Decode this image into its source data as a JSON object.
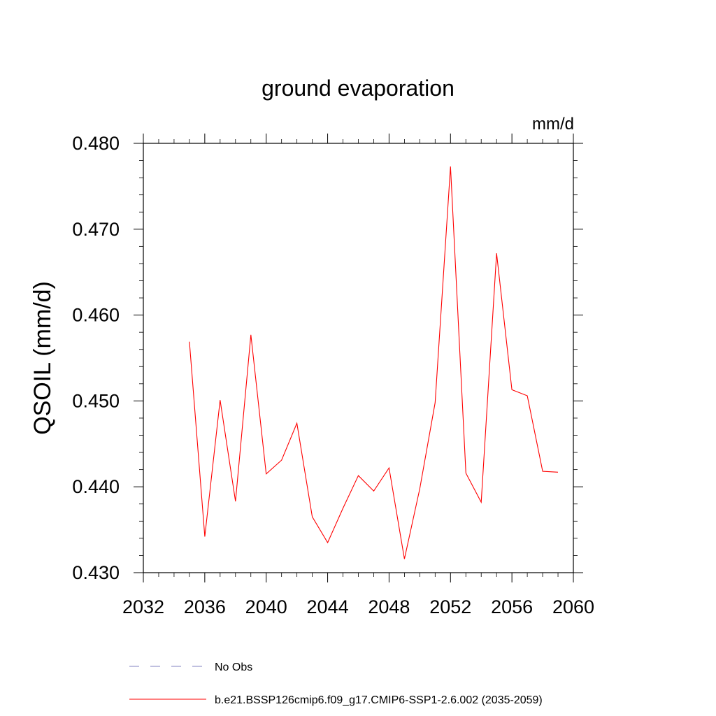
{
  "chart_data": {
    "type": "line",
    "title": "ground evaporation",
    "units_label": "mm/d",
    "ylabel": "QSOIL  (mm/d)",
    "xlabel": "",
    "xlim": [
      2032,
      2060
    ],
    "ylim": [
      0.43,
      0.48
    ],
    "x_ticks": [
      2032,
      2036,
      2040,
      2044,
      2048,
      2052,
      2056,
      2060
    ],
    "x_tick_labels": [
      "2032",
      "2036",
      "2040",
      "2044",
      "2048",
      "2052",
      "2056",
      "2060"
    ],
    "y_ticks": [
      0.43,
      0.44,
      0.45,
      0.46,
      0.47,
      0.48
    ],
    "y_tick_labels": [
      "0.430",
      "0.440",
      "0.450",
      "0.460",
      "0.470",
      "0.480"
    ],
    "grid": false,
    "legend_position": "bottom-left",
    "series": [
      {
        "name": "b.e21.BSSP126cmip6.f09_g17.CMIP6-SSP1-2.6.002 (2035-2059)",
        "color": "#ff0000",
        "x": [
          2035,
          2036,
          2037,
          2038,
          2039,
          2040,
          2041,
          2042,
          2043,
          2044,
          2045,
          2046,
          2047,
          2048,
          2049,
          2050,
          2051,
          2052,
          2053,
          2054,
          2055,
          2056,
          2057,
          2058,
          2059
        ],
        "y": [
          0.4569,
          0.4342,
          0.4501,
          0.4383,
          0.4577,
          0.4415,
          0.4431,
          0.4474,
          0.4365,
          0.4335,
          0.4375,
          0.4413,
          0.4395,
          0.4422,
          0.4316,
          0.4398,
          0.4498,
          0.4773,
          0.4416,
          0.4382,
          0.4672,
          0.4513,
          0.4506,
          0.4418,
          0.4417
        ]
      }
    ],
    "legend": [
      {
        "label": "No Obs",
        "color": "#8080c0",
        "style": "dashed"
      },
      {
        "label": "b.e21.BSSP126cmip6.f09_g17.CMIP6-SSP1-2.6.002 (2035-2059)",
        "color": "#ff0000",
        "style": "solid"
      }
    ]
  }
}
